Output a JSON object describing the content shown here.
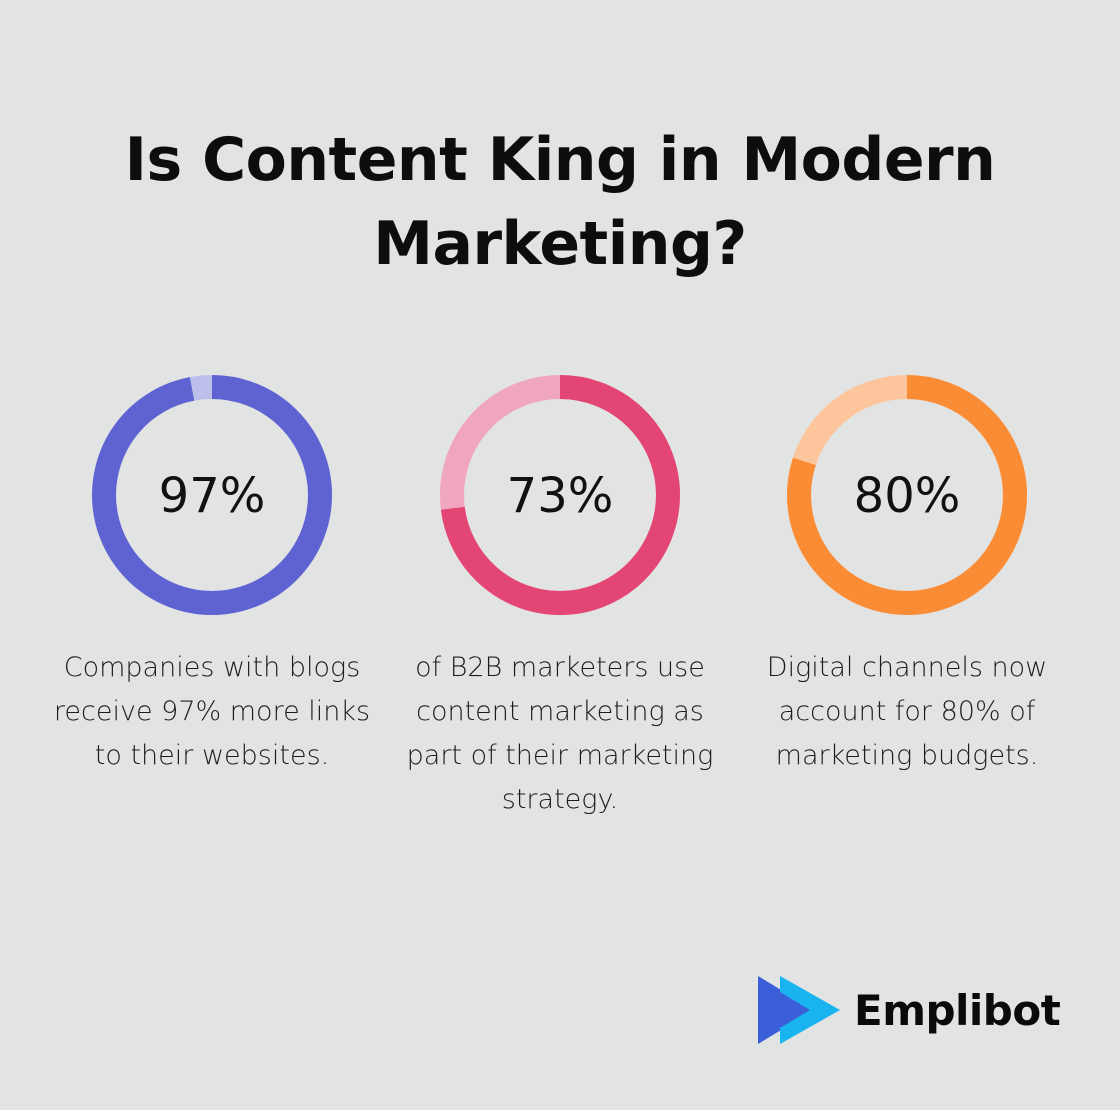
{
  "title": "Is Content King in Modern Marketing?",
  "chart_data": {
    "type": "donut",
    "title": "Is Content King in Modern Marketing?",
    "items": [
      {
        "label": "97%",
        "value": 97,
        "caption": "Companies with blogs receive 97% more links to their websites.",
        "color_main": "#5f63d1",
        "color_rest": "#bcbfea"
      },
      {
        "label": "73%",
        "value": 73,
        "caption": "of B2B marketers use content marketing as part of their marketing strategy.",
        "color_main": "#e34575",
        "color_rest": "#f0a6be"
      },
      {
        "label": "80%",
        "value": 80,
        "caption": "Digital channels now account for 80% of marketing budgets.",
        "color_main": "#fa8c35",
        "color_rest": "#fdc59b"
      }
    ]
  },
  "brand": {
    "name": "Emplibot",
    "icon": "emplibot-play-logo-icon",
    "colors": [
      "#3b5fd8",
      "#19b3f0"
    ]
  }
}
